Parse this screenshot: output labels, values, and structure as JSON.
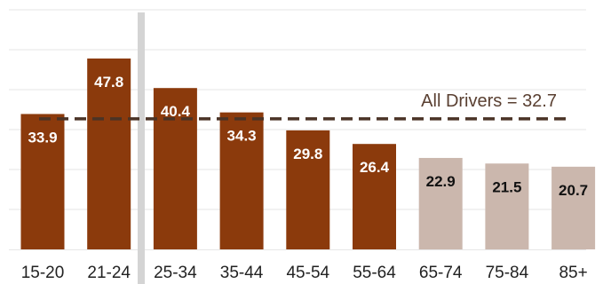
{
  "chart_data": {
    "type": "bar",
    "categories": [
      "15-20",
      "21-24",
      "25-34",
      "35-44",
      "45-54",
      "55-64",
      "65-74",
      "75-84",
      "85+"
    ],
    "values": [
      33.9,
      47.8,
      40.4,
      34.3,
      29.8,
      26.4,
      22.9,
      21.5,
      20.7
    ],
    "value_labels": [
      "33.9",
      "47.8",
      "40.4",
      "34.3",
      "29.8",
      "26.4",
      "22.9",
      "21.5",
      "20.7"
    ],
    "ylim": [
      0,
      60
    ],
    "grid": true,
    "reference_line": {
      "label": "All Drivers = 32.7",
      "value": 32.7
    },
    "colors": {
      "dark_bar": "#8b3a0c",
      "light_bar": "#cbb7ad",
      "dark_label": "#ffffff",
      "light_label": "#111111",
      "reference": "#4a3326",
      "reference_label": "#5a4032",
      "divider": "#d4d4d4"
    },
    "light_from_category_index": 6
  }
}
